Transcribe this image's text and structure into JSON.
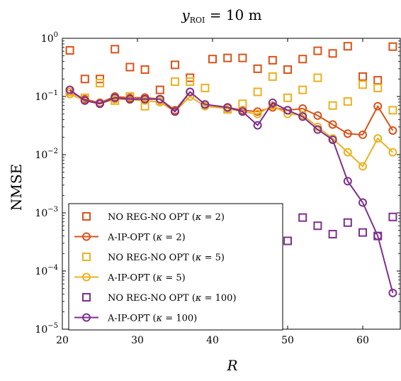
{
  "chart_data": {
    "type": "scatter",
    "title": "y_ROI = 10 m",
    "title_parts": {
      "var": "y",
      "sub": "ROI",
      "rest": " = 10 m"
    },
    "xlabel": "R",
    "ylabel": "NMSE",
    "xlim": [
      20,
      65
    ],
    "ylim": [
      1e-05,
      1
    ],
    "yscale": "log",
    "grid": false,
    "legend_placement": "bottom-left",
    "x_ticks": [
      20,
      30,
      40,
      50,
      60
    ],
    "y_ticks": [
      {
        "base": "10",
        "exp": "−5",
        "value": 1e-05
      },
      {
        "base": "10",
        "exp": "−4",
        "value": 0.0001
      },
      {
        "base": "10",
        "exp": "−3",
        "value": 0.001
      },
      {
        "base": "10",
        "exp": "−2",
        "value": 0.01
      },
      {
        "base": "10",
        "exp": "−1",
        "value": 0.1
      },
      {
        "base": "10",
        "exp": "0",
        "value": 1
      }
    ],
    "series": [
      {
        "name": "NO REG-NO OPT (κ = 2)",
        "legend_prefix": "NO REG-NO OPT (",
        "kappa": "2",
        "style": "markers",
        "marker": "square",
        "color": "#d95319",
        "x": [
          21,
          23,
          25,
          27,
          29,
          31,
          33,
          35,
          37,
          40,
          42,
          44,
          46,
          48,
          50,
          52,
          54,
          56,
          58,
          60,
          62,
          64
        ],
        "y": [
          0.62,
          0.2,
          0.2,
          0.65,
          0.32,
          0.29,
          0.13,
          0.35,
          0.21,
          0.44,
          0.46,
          0.46,
          0.3,
          0.42,
          0.29,
          0.44,
          0.61,
          0.55,
          0.73,
          0.22,
          0.19,
          0.72
        ]
      },
      {
        "name": "A-IP-OPT (κ = 2)",
        "legend_prefix": "A-IP-OPT (",
        "kappa": "2",
        "style": "line",
        "marker": "circle",
        "color": "#d95319",
        "x": [
          21,
          23,
          25,
          27,
          29,
          31,
          33,
          35,
          37,
          39,
          42,
          44,
          46,
          48,
          50,
          52,
          54,
          56,
          58,
          60,
          62,
          64
        ],
        "y": [
          0.12,
          0.09,
          0.078,
          0.1,
          0.095,
          0.096,
          0.09,
          0.058,
          0.12,
          0.073,
          0.065,
          0.058,
          0.055,
          0.065,
          0.058,
          0.062,
          0.047,
          0.033,
          0.023,
          0.022,
          0.068,
          0.026
        ]
      },
      {
        "name": "NO REG-NO OPT (κ = 5)",
        "legend_prefix": "NO REG-NO OPT (",
        "kappa": "5",
        "style": "markers",
        "marker": "square",
        "color": "#edb120",
        "x": [
          21,
          23,
          25,
          27,
          29,
          31,
          33,
          35,
          37,
          39,
          42,
          44,
          46,
          48,
          50,
          52,
          54,
          56,
          58,
          60,
          62,
          64
        ],
        "y": [
          0.12,
          0.095,
          0.17,
          0.085,
          0.1,
          0.068,
          0.085,
          0.18,
          0.18,
          0.14,
          0.06,
          0.075,
          0.12,
          0.22,
          0.095,
          0.13,
          0.21,
          0.07,
          0.082,
          0.16,
          0.14,
          0.058
        ]
      },
      {
        "name": "A-IP-OPT (κ = 5)",
        "legend_prefix": "A-IP-OPT (",
        "kappa": "5",
        "style": "line",
        "marker": "circle",
        "color": "#edb120",
        "x": [
          21,
          23,
          25,
          27,
          29,
          31,
          33,
          35,
          37,
          39,
          42,
          44,
          46,
          48,
          50,
          52,
          54,
          56,
          58,
          60,
          62,
          64
        ],
        "y": [
          0.11,
          0.085,
          0.075,
          0.09,
          0.088,
          0.085,
          0.08,
          0.055,
          0.1,
          0.068,
          0.062,
          0.055,
          0.05,
          0.07,
          0.05,
          0.048,
          0.03,
          0.019,
          0.011,
          0.0063,
          0.019,
          0.011
        ]
      },
      {
        "name": "NO REG-NO OPT (κ = 100)",
        "legend_prefix": "NO REG-NO OPT (",
        "kappa": "100",
        "style": "markers",
        "marker": "square",
        "color": "#7e2f8e",
        "x": [
          50,
          52,
          54,
          56,
          58,
          60,
          62,
          64
        ],
        "y": [
          0.00033,
          0.00083,
          0.0006,
          0.00043,
          0.00068,
          0.00046,
          0.0004,
          0.00085
        ]
      },
      {
        "name": "A-IP-OPT (κ = 100)",
        "legend_prefix": "A-IP-OPT (",
        "kappa": "100",
        "style": "line",
        "marker": "circle",
        "color": "#7e2f8e",
        "x": [
          21,
          23,
          25,
          27,
          29,
          31,
          33,
          35,
          37,
          39,
          42,
          44,
          46,
          48,
          50,
          52,
          54,
          56,
          58,
          60,
          62,
          64
        ],
        "y": [
          0.13,
          0.085,
          0.075,
          0.095,
          0.09,
          0.09,
          0.09,
          0.055,
          0.12,
          0.073,
          0.065,
          0.055,
          0.032,
          0.078,
          0.058,
          0.045,
          0.027,
          0.018,
          0.0035,
          0.0015,
          0.0004,
          4.2e-05
        ]
      }
    ]
  }
}
